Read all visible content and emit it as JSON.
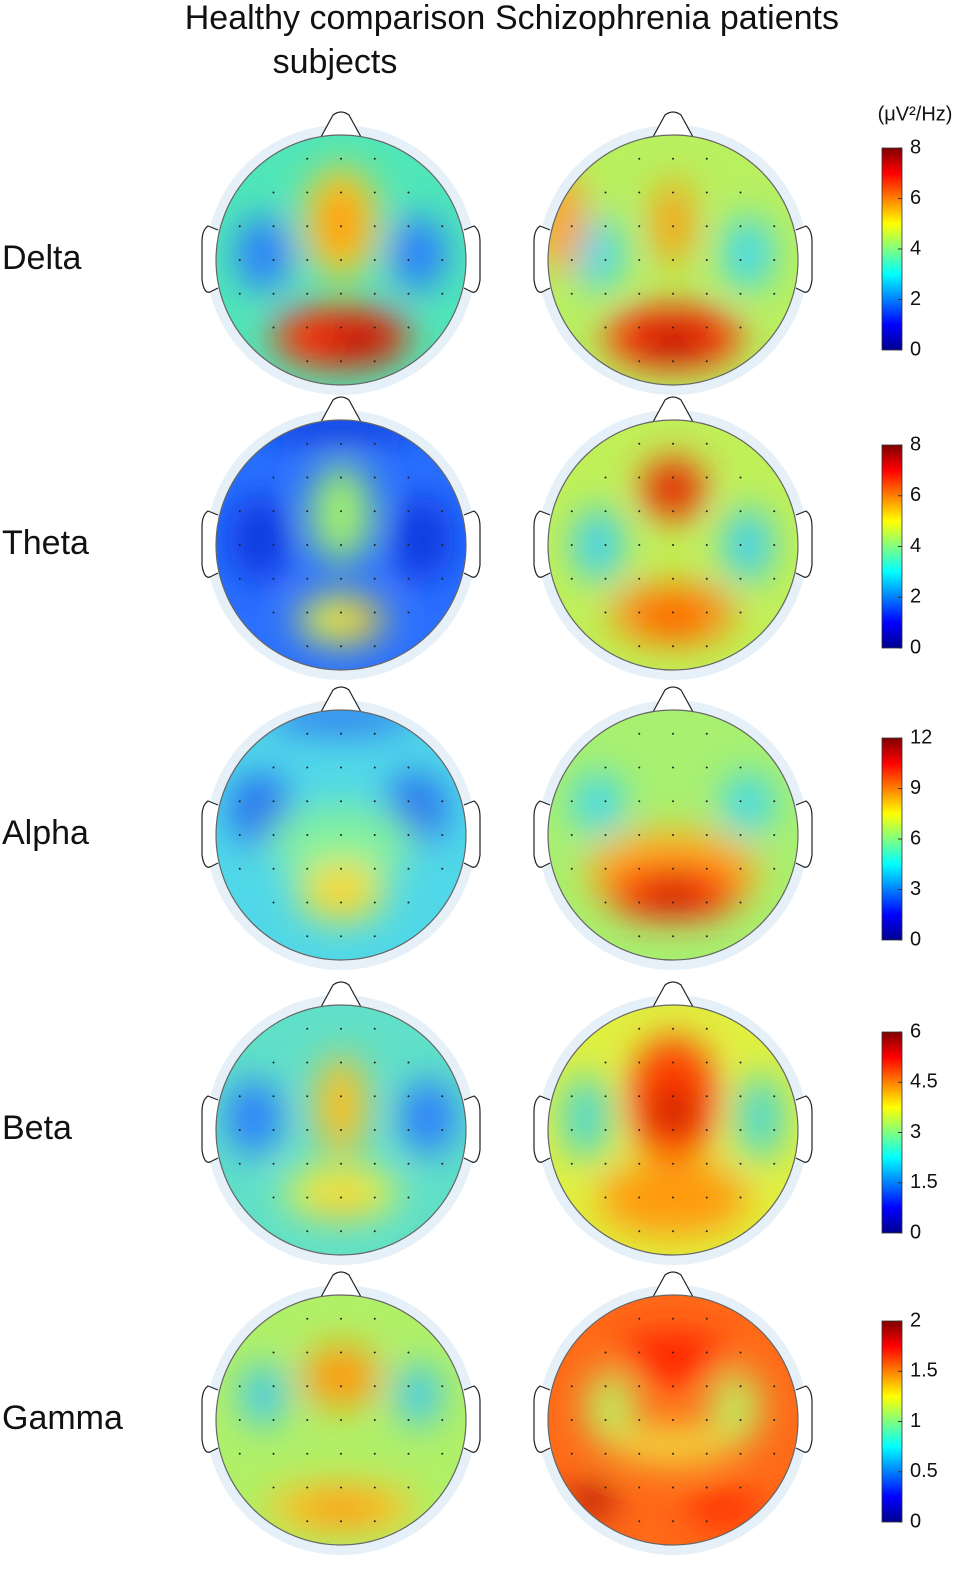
{
  "column_titles": [
    "Healthy comparison subjects",
    "Schizophrenia patients"
  ],
  "unit_label": "(μV²/Hz)",
  "rows": [
    {
      "label": "Delta",
      "colorbar": {
        "lim": [
          0,
          8
        ],
        "ticks": [
          0,
          2,
          4,
          6,
          8
        ]
      }
    },
    {
      "label": "Theta",
      "colorbar": {
        "lim": [
          0,
          8
        ],
        "ticks": [
          0,
          2,
          4,
          6,
          8
        ]
      }
    },
    {
      "label": "Alpha",
      "colorbar": {
        "lim": [
          0,
          12
        ],
        "ticks": [
          0,
          3,
          6,
          9,
          12
        ]
      }
    },
    {
      "label": "Beta",
      "colorbar": {
        "lim": [
          0,
          6
        ],
        "ticks": [
          0,
          1.5,
          3,
          4.5,
          6
        ]
      }
    },
    {
      "label": "Gamma",
      "colorbar": {
        "lim": [
          0,
          2
        ],
        "ticks": [
          0,
          0.5,
          1,
          1.5,
          2
        ]
      }
    }
  ]
}
